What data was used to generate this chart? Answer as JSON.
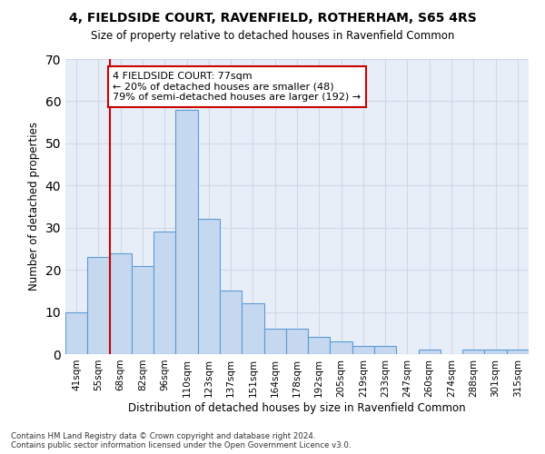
{
  "title1": "4, FIELDSIDE COURT, RAVENFIELD, ROTHERHAM, S65 4RS",
  "title2": "Size of property relative to detached houses in Ravenfield Common",
  "xlabel": "Distribution of detached houses by size in Ravenfield Common",
  "ylabel": "Number of detached properties",
  "categories": [
    "41sqm",
    "55sqm",
    "68sqm",
    "82sqm",
    "96sqm",
    "110sqm",
    "123sqm",
    "137sqm",
    "151sqm",
    "164sqm",
    "178sqm",
    "192sqm",
    "205sqm",
    "219sqm",
    "233sqm",
    "247sqm",
    "260sqm",
    "274sqm",
    "288sqm",
    "301sqm",
    "315sqm"
  ],
  "values": [
    10,
    23,
    24,
    21,
    29,
    58,
    32,
    15,
    12,
    6,
    6,
    4,
    3,
    2,
    2,
    0,
    1,
    0,
    1,
    1,
    1
  ],
  "bar_color": "#c5d8f0",
  "bar_edge_color": "#5b9bd5",
  "vline_x": 1.5,
  "vline_color": "#cc0000",
  "annotation_line1": "4 FIELDSIDE COURT: 77sqm",
  "annotation_line2": "← 20% of detached houses are smaller (48)",
  "annotation_line3": "79% of semi-detached houses are larger (192) →",
  "annotation_box_color": "#ffffff",
  "annotation_box_edge": "#cc0000",
  "ylim": [
    0,
    70
  ],
  "yticks": [
    0,
    10,
    20,
    30,
    40,
    50,
    60,
    70
  ],
  "footnote1": "Contains HM Land Registry data © Crown copyright and database right 2024.",
  "footnote2": "Contains public sector information licensed under the Open Government Licence v3.0.",
  "grid_color": "#d0d8e8",
  "background_color": "#e8eef8"
}
